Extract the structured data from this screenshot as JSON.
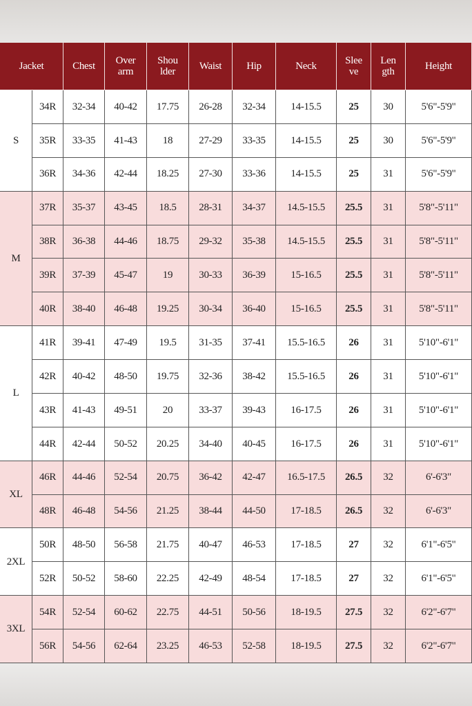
{
  "header": [
    [
      "Jacket"
    ],
    [
      "Chest"
    ],
    [
      "Over",
      "arm"
    ],
    [
      "Shou",
      "lder"
    ],
    [
      "Waist"
    ],
    [
      "Hip"
    ],
    [
      "Neck"
    ],
    [
      "Slee",
      "ve"
    ],
    [
      "Len",
      "gth"
    ],
    [
      "Height"
    ]
  ],
  "groups": [
    {
      "size": "S",
      "rows": [
        [
          "34R",
          "32-34",
          "40-42",
          "17.75",
          "26-28",
          "32-34",
          "14-15.5",
          "25",
          "30",
          "5'6\"-5'9\""
        ],
        [
          "35R",
          "33-35",
          "41-43",
          "18",
          "27-29",
          "33-35",
          "14-15.5",
          "25",
          "30",
          "5'6\"-5'9\""
        ],
        [
          "36R",
          "34-36",
          "42-44",
          "18.25",
          "27-30",
          "33-36",
          "14-15.5",
          "25",
          "31",
          "5'6\"-5'9\""
        ]
      ]
    },
    {
      "size": "M",
      "rows": [
        [
          "37R",
          "35-37",
          "43-45",
          "18.5",
          "28-31",
          "34-37",
          "14.5-15.5",
          "25.5",
          "31",
          "5'8\"-5'11\""
        ],
        [
          "38R",
          "36-38",
          "44-46",
          "18.75",
          "29-32",
          "35-38",
          "14.5-15.5",
          "25.5",
          "31",
          "5'8\"-5'11\""
        ],
        [
          "39R",
          "37-39",
          "45-47",
          "19",
          "30-33",
          "36-39",
          "15-16.5",
          "25.5",
          "31",
          "5'8\"-5'11\""
        ],
        [
          "40R",
          "38-40",
          "46-48",
          "19.25",
          "30-34",
          "36-40",
          "15-16.5",
          "25.5",
          "31",
          "5'8\"-5'11\""
        ]
      ]
    },
    {
      "size": "L",
      "rows": [
        [
          "41R",
          "39-41",
          "47-49",
          "19.5",
          "31-35",
          "37-41",
          "15.5-16.5",
          "26",
          "31",
          "5'10\"-6'1\""
        ],
        [
          "42R",
          "40-42",
          "48-50",
          "19.75",
          "32-36",
          "38-42",
          "15.5-16.5",
          "26",
          "31",
          "5'10\"-6'1\""
        ],
        [
          "43R",
          "41-43",
          "49-51",
          "20",
          "33-37",
          "39-43",
          "16-17.5",
          "26",
          "31",
          "5'10\"-6'1\""
        ],
        [
          "44R",
          "42-44",
          "50-52",
          "20.25",
          "34-40",
          "40-45",
          "16-17.5",
          "26",
          "31",
          "5'10\"-6'1\""
        ]
      ]
    },
    {
      "size": "XL",
      "rows": [
        [
          "46R",
          "44-46",
          "52-54",
          "20.75",
          "36-42",
          "42-47",
          "16.5-17.5",
          "26.5",
          "32",
          "6'-6'3\""
        ],
        [
          "48R",
          "46-48",
          "54-56",
          "21.25",
          "38-44",
          "44-50",
          "17-18.5",
          "26.5",
          "32",
          "6'-6'3\""
        ]
      ]
    },
    {
      "size": "2XL",
      "rows": [
        [
          "50R",
          "48-50",
          "56-58",
          "21.75",
          "40-47",
          "46-53",
          "17-18.5",
          "27",
          "32",
          "6'1\"-6'5\""
        ],
        [
          "52R",
          "50-52",
          "58-60",
          "22.25",
          "42-49",
          "48-54",
          "17-18.5",
          "27",
          "32",
          "6'1\"-6'5\""
        ]
      ]
    },
    {
      "size": "3XL",
      "rows": [
        [
          "54R",
          "52-54",
          "60-62",
          "22.75",
          "44-51",
          "50-56",
          "18-19.5",
          "27.5",
          "32",
          "6'2\"-6'7\""
        ],
        [
          "56R",
          "54-56",
          "62-64",
          "23.25",
          "46-53",
          "52-58",
          "18-19.5",
          "27.5",
          "32",
          "6'2\"-6'7\""
        ]
      ]
    }
  ]
}
